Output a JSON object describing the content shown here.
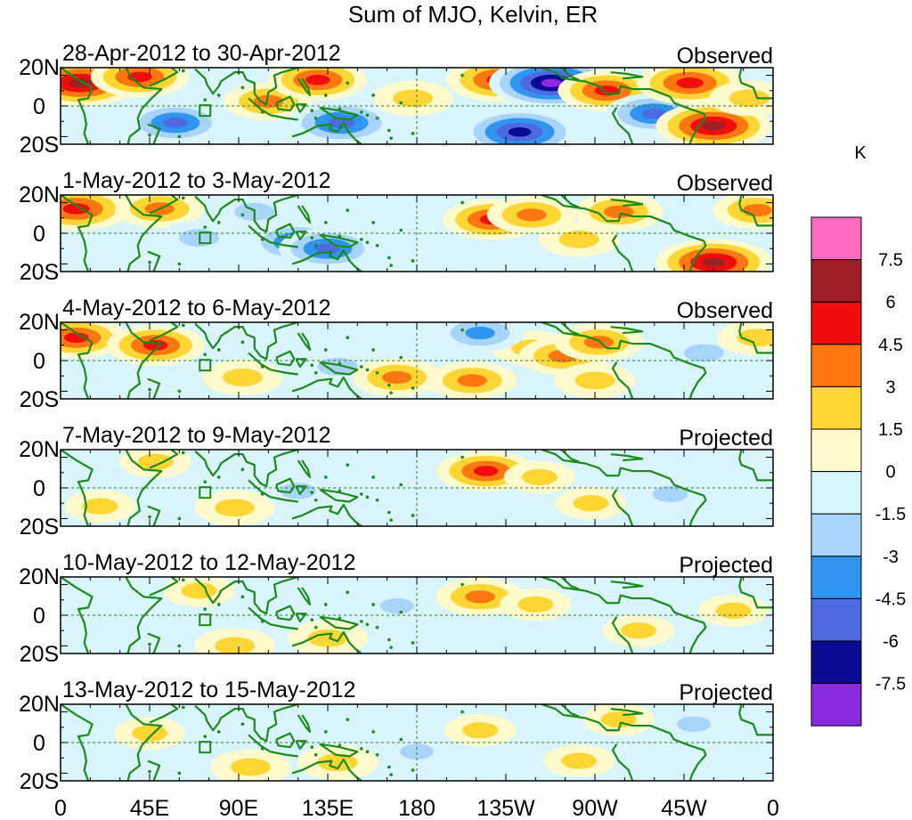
{
  "chart_data": {
    "type": "heatmap",
    "title": "Sum of MJO, Kelvin, ER",
    "xlabel": "",
    "ylabel": "",
    "x_ticks": [
      "0",
      "45E",
      "90E",
      "135E",
      "180",
      "135W",
      "90W",
      "45W",
      "0"
    ],
    "y_ticks": [
      "20N",
      "0",
      "20S"
    ],
    "xlim": [
      0,
      360
    ],
    "ylim": [
      -25,
      25
    ],
    "panels": [
      {
        "date_range": "28-Apr-2012 to 30-Apr-2012",
        "status": "Observed",
        "anomalies": [
          [
            10,
            15,
            7
          ],
          [
            40,
            19,
            5
          ],
          [
            58,
            -11,
            -5
          ],
          [
            105,
            3,
            4
          ],
          [
            130,
            17,
            5
          ],
          [
            142,
            -11,
            -6
          ],
          [
            178,
            5,
            3
          ],
          [
            222,
            17,
            6
          ],
          [
            232,
            -17,
            -7
          ],
          [
            248,
            15,
            -8
          ],
          [
            276,
            10,
            5
          ],
          [
            300,
            -5,
            -5
          ],
          [
            318,
            15,
            6
          ],
          [
            330,
            -13,
            7
          ],
          [
            348,
            5,
            3
          ]
        ]
      },
      {
        "date_range": "1-May-2012 to 3-May-2012",
        "status": "Observed",
        "anomalies": [
          [
            8,
            16,
            6
          ],
          [
            50,
            16,
            4
          ],
          [
            70,
            -3,
            -3
          ],
          [
            98,
            14,
            -3
          ],
          [
            120,
            -6,
            -5
          ],
          [
            135,
            -10,
            -5
          ],
          [
            218,
            9,
            5
          ],
          [
            238,
            12,
            4
          ],
          [
            282,
            14,
            4
          ],
          [
            262,
            -4,
            3
          ],
          [
            330,
            -19,
            7
          ],
          [
            352,
            15,
            4
          ]
        ]
      },
      {
        "date_range": "4-May-2012 to 6-May-2012",
        "status": "Observed",
        "anomalies": [
          [
            8,
            15,
            5
          ],
          [
            48,
            10,
            5
          ],
          [
            92,
            -11,
            3
          ],
          [
            140,
            -4,
            -3
          ],
          [
            170,
            -11,
            4
          ],
          [
            208,
            -13,
            4
          ],
          [
            238,
            8,
            3
          ],
          [
            254,
            3,
            4
          ],
          [
            272,
            12,
            4
          ],
          [
            212,
            18,
            -4
          ],
          [
            270,
            -13,
            3
          ],
          [
            325,
            5,
            -3
          ],
          [
            352,
            15,
            3
          ]
        ]
      },
      {
        "date_range": "7-May-2012 to 9-May-2012",
        "status": "Projected",
        "anomalies": [
          [
            48,
            17,
            2
          ],
          [
            88,
            -13,
            3
          ],
          [
            120,
            -2,
            -2
          ],
          [
            215,
            11,
            5
          ],
          [
            242,
            7,
            2
          ],
          [
            268,
            -10,
            2
          ],
          [
            308,
            -4,
            -2
          ],
          [
            20,
            -12,
            2
          ]
        ]
      },
      {
        "date_range": "10-May-2012 to 12-May-2012",
        "status": "Projected",
        "anomalies": [
          [
            70,
            16,
            2
          ],
          [
            88,
            -20,
            3
          ],
          [
            135,
            -15,
            3
          ],
          [
            212,
            12,
            4
          ],
          [
            240,
            7,
            2
          ],
          [
            292,
            -10,
            2
          ],
          [
            340,
            3,
            2
          ],
          [
            170,
            6,
            -1.6
          ]
        ]
      },
      {
        "date_range": "13-May-2012 to 15-May-2012",
        "status": "Projected",
        "anomalies": [
          [
            45,
            6,
            2
          ],
          [
            96,
            -16,
            3
          ],
          [
            140,
            -13,
            3
          ],
          [
            212,
            8,
            2
          ],
          [
            262,
            -12,
            2
          ],
          [
            282,
            15,
            2
          ],
          [
            180,
            -6,
            -1.6
          ],
          [
            320,
            12,
            -1.6
          ]
        ]
      }
    ],
    "colorbar": {
      "unit": "K",
      "levels": [
        "7.5",
        "6",
        "4.5",
        "3",
        "1.5",
        "0",
        "-1.5",
        "-3",
        "-4.5",
        "-6",
        "-7.5"
      ],
      "colors": [
        "#ff6bc0",
        "#9e2026",
        "#f00d0d",
        "#ff7711",
        "#ffd633",
        "#fffacc",
        "#d9f5fb",
        "#a8d4fa",
        "#2f95f0",
        "#4f6ae0",
        "#0a0a92",
        "#8a2be2"
      ]
    }
  }
}
